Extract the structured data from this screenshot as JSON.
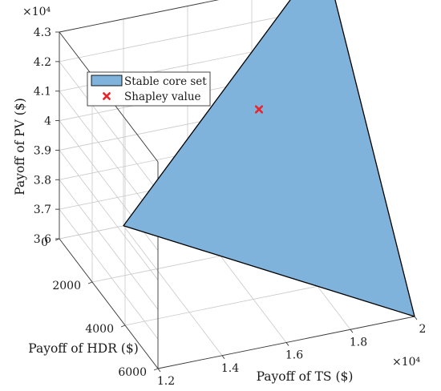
{
  "chart_data": {
    "type": "3d-surface",
    "series": [
      {
        "name": "Stable core set",
        "kind": "polygon",
        "color": "#7fb3dc",
        "edge_color": "#000000",
        "points": [
          {
            "ts": 20000,
            "hdr": 6000,
            "pv": 36000
          },
          {
            "ts": 14000,
            "hdr": 0,
            "pv": 36000
          },
          {
            "ts": 20000,
            "hdr": 0,
            "pv": 43500
          },
          {
            "ts": 20400,
            "hdr": 0,
            "pv": 43100
          }
        ]
      },
      {
        "name": "Shapley value",
        "kind": "point",
        "marker": "x",
        "color": "#e8262b",
        "points": [
          {
            "ts": 17200,
            "hdr": 2000,
            "pv": 40700
          }
        ]
      }
    ],
    "axes": {
      "x": {
        "label": "Payoff of TS ($)",
        "range": [
          12000,
          20000
        ],
        "ticks": [
          12000,
          14000,
          16000,
          18000,
          20000
        ],
        "tick_labels": [
          "1.2",
          "1.4",
          "1.6",
          "1.8",
          "2"
        ],
        "multiplier": "×10⁴"
      },
      "y": {
        "label": "Payoff of HDR ($)",
        "range": [
          0,
          6000
        ],
        "ticks": [
          0,
          2000,
          4000,
          6000
        ],
        "tick_labels": [
          "0",
          "2000",
          "4000",
          "6000"
        ]
      },
      "z": {
        "label": "Payoff of PV ($)",
        "range": [
          36000,
          43000
        ],
        "ticks": [
          36000,
          37000,
          38000,
          39000,
          40000,
          41000,
          42000,
          43000
        ],
        "tick_labels": [
          "3.6",
          "3.7",
          "3.8",
          "3.9",
          "4",
          "4.1",
          "4.2",
          "4.3"
        ],
        "multiplier": "×10⁴"
      }
    },
    "grid": true,
    "legend": {
      "position": "upper-left",
      "entries": [
        "Stable core set",
        "Shapley value"
      ]
    }
  }
}
